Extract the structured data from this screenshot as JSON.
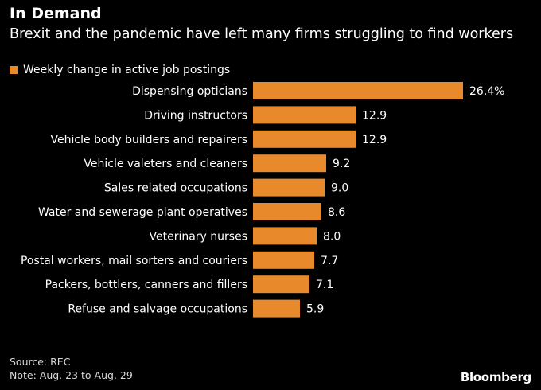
{
  "header": {
    "title": "In Demand",
    "subtitle": "Brexit and the pandemic have left many firms struggling to find workers"
  },
  "legend": {
    "label": "Weekly change in active job postings"
  },
  "colors": {
    "bar": "#e8892b",
    "background": "#000000",
    "text": "#ffffff"
  },
  "chart_data": {
    "type": "bar",
    "orientation": "horizontal",
    "title": "In Demand",
    "subtitle": "Brexit and the pandemic have left many firms struggling to find workers",
    "series": [
      {
        "name": "Weekly change in active job postings",
        "values": [
          26.4,
          12.9,
          12.9,
          9.2,
          9.0,
          8.6,
          8.0,
          7.7,
          7.1,
          5.9
        ]
      }
    ],
    "categories": [
      "Dispensing opticians",
      "Driving instructors",
      "Vehicle body builders and repairers",
      "Vehicle valeters and cleaners",
      "Sales related occupations",
      "Water and sewerage plant operatives",
      "Veterinary nurses",
      "Postal workers, mail sorters and couriers",
      "Packers, bottlers, canners and fillers",
      "Refuse and salvage occupations"
    ],
    "value_labels": [
      "26.4%",
      "12.9",
      "12.9",
      "9.2",
      "9.0",
      "8.6",
      "8.0",
      "7.7",
      "7.1",
      "5.9"
    ],
    "xlim": [
      0,
      26.4
    ],
    "xlabel": "",
    "ylabel": "",
    "grid": false,
    "legend_position": "top-left"
  },
  "footer": {
    "source": "Source: REC",
    "note": "Note: Aug. 23 to Aug. 29",
    "brand": "Bloomberg"
  }
}
